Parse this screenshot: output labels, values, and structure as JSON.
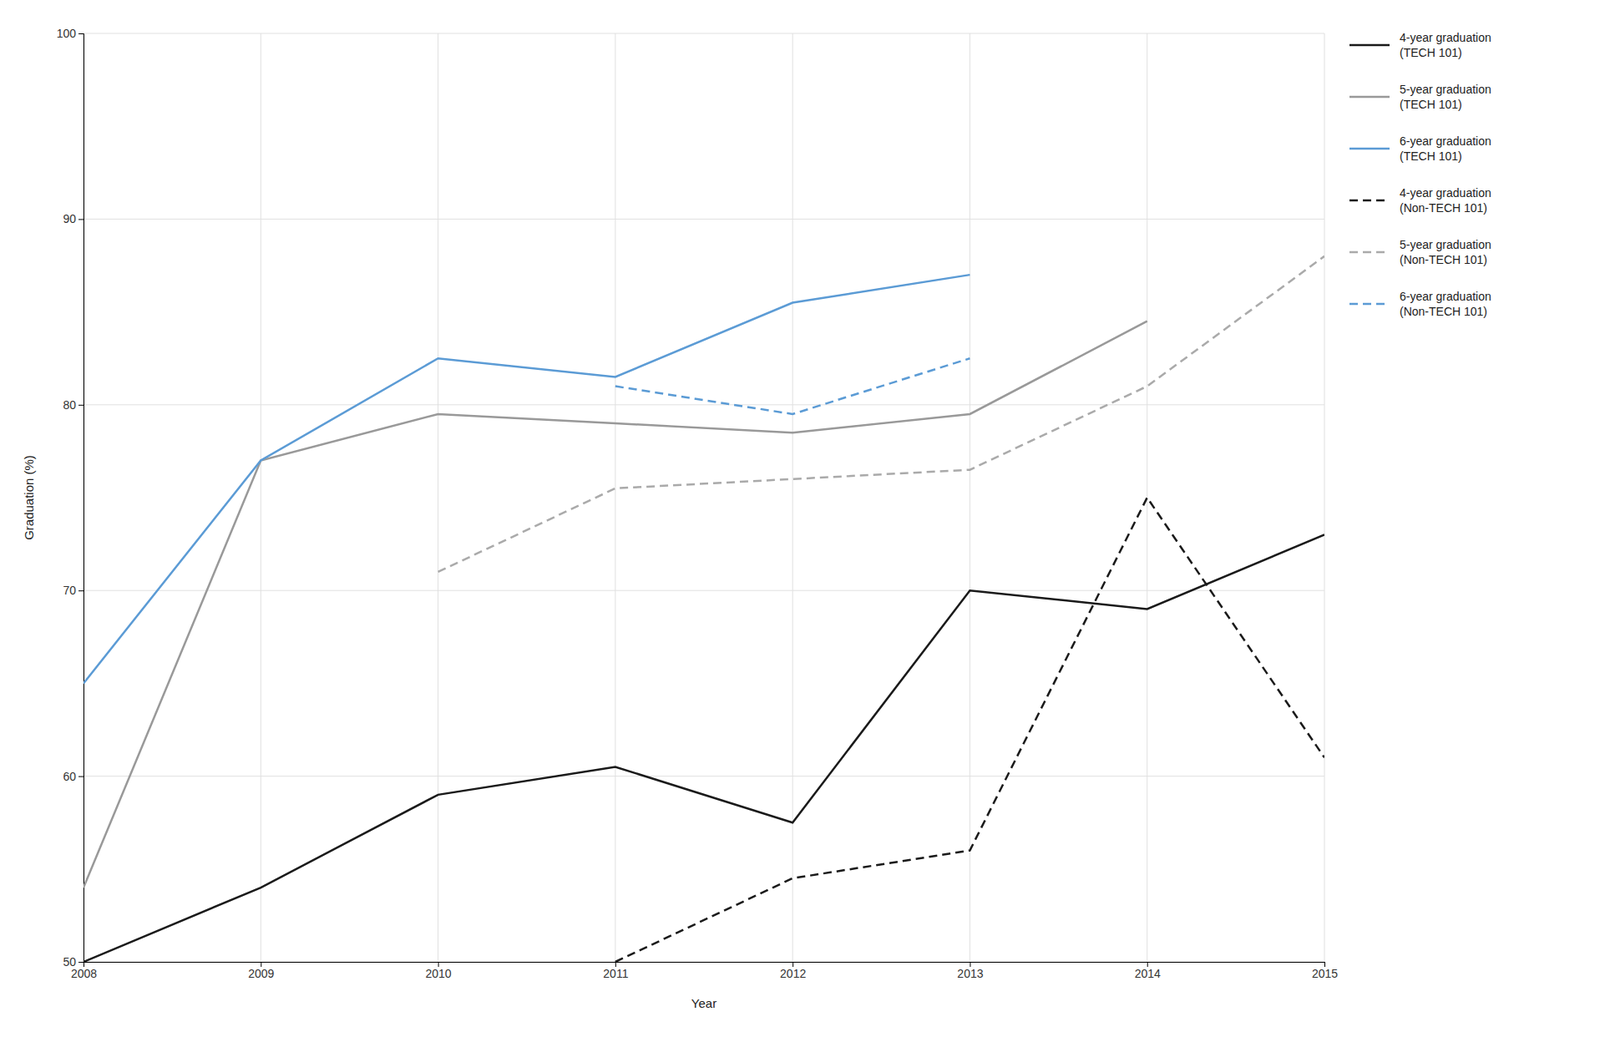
{
  "chart_data": {
    "type": "line",
    "x": [
      2008,
      2009,
      2010,
      2011,
      2012,
      2013,
      2014,
      2015
    ],
    "xlabel": "Year",
    "ylabel": "Graduation (%)",
    "xlim": [
      2008,
      2015
    ],
    "xticks": [
      2008,
      2009,
      2010,
      2011,
      2012,
      2013,
      2014,
      2015
    ],
    "ylim": [
      50,
      100
    ],
    "yticks": [
      50,
      60,
      70,
      80,
      90,
      100
    ],
    "grid": true,
    "legend": "right",
    "series": [
      {
        "name": "4-year graduation\n(TECH 101)",
        "color": "#1a1a1a",
        "line_style": "solid",
        "values": [
          50,
          54,
          59,
          60.5,
          57.5,
          70,
          69,
          73
        ]
      },
      {
        "name": "5-year graduation\n(TECH 101)",
        "color": "#999999",
        "line_style": "solid",
        "values": [
          54,
          77,
          79.5,
          79,
          78.5,
          79.5,
          84.5,
          null
        ]
      },
      {
        "name": "6-year graduation\n(TECH 101)",
        "color": "#5b9bd5",
        "line_style": "solid",
        "values": [
          65,
          77,
          82.5,
          81.5,
          85.5,
          87,
          null,
          null
        ]
      },
      {
        "name": "4-year graduation\n(Non-TECH 101)",
        "color": "#1a1a1a",
        "line_style": "dashed",
        "values": [
          null,
          null,
          null,
          50,
          54.5,
          56,
          75,
          61
        ]
      },
      {
        "name": "5-year graduation\n(Non-TECH 101)",
        "color": "#aaaaaa",
        "line_style": "dashed",
        "values": [
          null,
          null,
          71,
          75.5,
          76,
          76.5,
          81,
          88
        ]
      },
      {
        "name": "6-year graduation\n(Non-TECH 101)",
        "color": "#5b9bd5",
        "line_style": "dashed",
        "values": [
          null,
          null,
          null,
          81,
          79.5,
          82.5,
          null,
          null
        ]
      }
    ]
  }
}
